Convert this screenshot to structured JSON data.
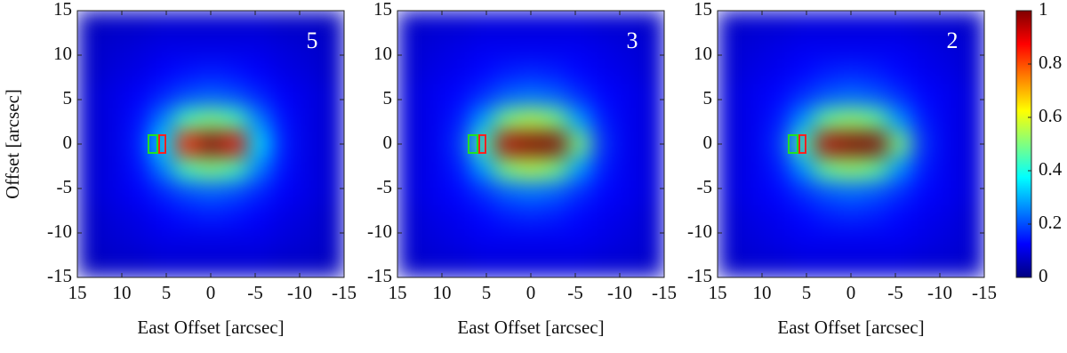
{
  "chart_data": [
    {
      "type": "heatmap",
      "panel_label": "5",
      "ylabel": "Offset [arcsec]",
      "xlabel": "East Offset [arcsec]",
      "xlim": [
        15,
        -15
      ],
      "ylim": [
        -15,
        15
      ],
      "xticks": [
        15,
        10,
        5,
        0,
        -5,
        -10,
        -15
      ],
      "yticks": [
        -15,
        -10,
        -5,
        0,
        5,
        10,
        15
      ],
      "z": [
        [
          0.06,
          0.07,
          0.07,
          0.08,
          0.08,
          0.08,
          0.08,
          0.08,
          0.07,
          0.07,
          0.06
        ],
        [
          0.07,
          0.08,
          0.09,
          0.1,
          0.1,
          0.1,
          0.1,
          0.1,
          0.09,
          0.08,
          0.07
        ],
        [
          0.07,
          0.09,
          0.1,
          0.12,
          0.14,
          0.15,
          0.14,
          0.12,
          0.1,
          0.09,
          0.07
        ],
        [
          0.08,
          0.1,
          0.12,
          0.16,
          0.2,
          0.22,
          0.2,
          0.16,
          0.12,
          0.1,
          0.08
        ],
        [
          0.08,
          0.1,
          0.14,
          0.25,
          0.45,
          0.5,
          0.45,
          0.25,
          0.14,
          0.1,
          0.08
        ],
        [
          0.08,
          0.1,
          0.15,
          0.35,
          0.85,
          1,
          0.9,
          0.35,
          0.15,
          0.1,
          0.08
        ],
        [
          0.08,
          0.1,
          0.14,
          0.25,
          0.45,
          0.5,
          0.45,
          0.25,
          0.14,
          0.1,
          0.08
        ],
        [
          0.08,
          0.1,
          0.12,
          0.16,
          0.2,
          0.22,
          0.2,
          0.16,
          0.12,
          0.1,
          0.08
        ],
        [
          0.07,
          0.09,
          0.1,
          0.12,
          0.14,
          0.15,
          0.14,
          0.12,
          0.1,
          0.09,
          0.07
        ],
        [
          0.07,
          0.08,
          0.09,
          0.1,
          0.1,
          0.1,
          0.1,
          0.1,
          0.09,
          0.08,
          0.07
        ],
        [
          0.06,
          0.07,
          0.07,
          0.08,
          0.08,
          0.08,
          0.08,
          0.08,
          0.07,
          0.07,
          0.06
        ]
      ]
    },
    {
      "type": "heatmap",
      "panel_label": "3",
      "xlabel": "East Offset [arcsec]",
      "xlim": [
        15,
        -15
      ],
      "ylim": [
        -15,
        15
      ],
      "xticks": [
        15,
        10,
        5,
        0,
        -5,
        -10,
        -15
      ],
      "yticks": [
        -15,
        -10,
        -5,
        0,
        5,
        10,
        15
      ],
      "z": [
        [
          0.07,
          0.08,
          0.08,
          0.09,
          0.09,
          0.09,
          0.09,
          0.09,
          0.08,
          0.08,
          0.07
        ],
        [
          0.08,
          0.09,
          0.1,
          0.11,
          0.11,
          0.11,
          0.11,
          0.11,
          0.1,
          0.09,
          0.08
        ],
        [
          0.08,
          0.1,
          0.11,
          0.13,
          0.15,
          0.16,
          0.15,
          0.13,
          0.11,
          0.1,
          0.08
        ],
        [
          0.09,
          0.11,
          0.13,
          0.17,
          0.22,
          0.24,
          0.22,
          0.17,
          0.13,
          0.11,
          0.09
        ],
        [
          0.09,
          0.11,
          0.15,
          0.28,
          0.5,
          0.55,
          0.5,
          0.28,
          0.15,
          0.11,
          0.09
        ],
        [
          0.09,
          0.11,
          0.17,
          0.45,
          0.95,
          1,
          1,
          0.5,
          0.17,
          0.11,
          0.09
        ],
        [
          0.09,
          0.11,
          0.15,
          0.28,
          0.5,
          0.55,
          0.5,
          0.28,
          0.15,
          0.11,
          0.09
        ],
        [
          0.09,
          0.11,
          0.13,
          0.17,
          0.22,
          0.24,
          0.22,
          0.17,
          0.13,
          0.11,
          0.09
        ],
        [
          0.08,
          0.1,
          0.11,
          0.13,
          0.15,
          0.16,
          0.15,
          0.13,
          0.11,
          0.1,
          0.08
        ],
        [
          0.08,
          0.09,
          0.1,
          0.11,
          0.11,
          0.11,
          0.11,
          0.11,
          0.1,
          0.09,
          0.08
        ],
        [
          0.07,
          0.08,
          0.08,
          0.09,
          0.09,
          0.09,
          0.09,
          0.09,
          0.08,
          0.08,
          0.07
        ]
      ]
    },
    {
      "type": "heatmap",
      "panel_label": "2",
      "xlabel": "East Offset [arcsec]",
      "xlim": [
        15,
        -15
      ],
      "ylim": [
        -15,
        15
      ],
      "xticks": [
        15,
        10,
        5,
        0,
        -5,
        -10,
        -15
      ],
      "yticks": [
        -15,
        -10,
        -5,
        0,
        5,
        10,
        15
      ],
      "z": [
        [
          0.07,
          0.08,
          0.08,
          0.09,
          0.09,
          0.09,
          0.09,
          0.09,
          0.08,
          0.08,
          0.07
        ],
        [
          0.08,
          0.09,
          0.1,
          0.11,
          0.11,
          0.11,
          0.11,
          0.11,
          0.1,
          0.09,
          0.08
        ],
        [
          0.08,
          0.1,
          0.11,
          0.13,
          0.15,
          0.16,
          0.15,
          0.13,
          0.11,
          0.1,
          0.08
        ],
        [
          0.09,
          0.11,
          0.13,
          0.17,
          0.21,
          0.23,
          0.21,
          0.17,
          0.13,
          0.11,
          0.09
        ],
        [
          0.09,
          0.11,
          0.15,
          0.27,
          0.48,
          0.52,
          0.48,
          0.27,
          0.15,
          0.11,
          0.09
        ],
        [
          0.09,
          0.11,
          0.17,
          0.45,
          0.95,
          1,
          1,
          0.5,
          0.17,
          0.11,
          0.09
        ],
        [
          0.09,
          0.11,
          0.15,
          0.27,
          0.48,
          0.52,
          0.48,
          0.27,
          0.15,
          0.11,
          0.09
        ],
        [
          0.09,
          0.11,
          0.13,
          0.17,
          0.21,
          0.23,
          0.21,
          0.17,
          0.13,
          0.11,
          0.09
        ],
        [
          0.08,
          0.1,
          0.11,
          0.13,
          0.15,
          0.16,
          0.15,
          0.13,
          0.11,
          0.1,
          0.08
        ],
        [
          0.08,
          0.09,
          0.1,
          0.11,
          0.11,
          0.11,
          0.11,
          0.11,
          0.1,
          0.09,
          0.08
        ],
        [
          0.07,
          0.08,
          0.08,
          0.09,
          0.09,
          0.09,
          0.09,
          0.09,
          0.08,
          0.08,
          0.07
        ]
      ]
    }
  ],
  "colorbar": {
    "ylim": [
      0,
      1
    ],
    "yticks": [
      0,
      0.2,
      0.4,
      0.6,
      0.8,
      1
    ]
  }
}
